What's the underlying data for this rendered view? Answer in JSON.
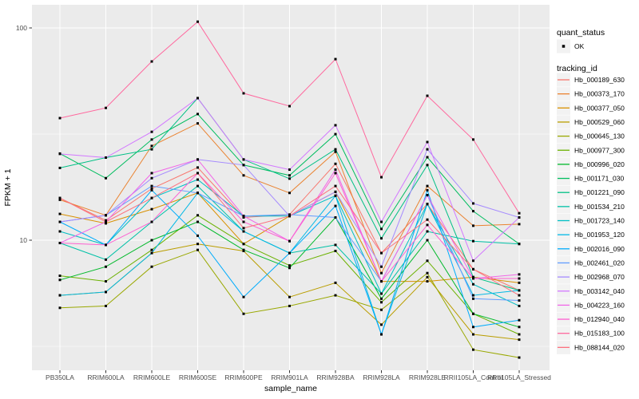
{
  "figure": {
    "panel_bg": "#EBEBEB",
    "grid_color": "#FFFFFF",
    "tick_color": "#333333",
    "tick_label_color": "#4D4D4D",
    "axis_title_color": "#000000",
    "point_color": "#000000",
    "legend_key_bg": "#F2F2F2"
  },
  "chart_data": {
    "type": "line",
    "title": "",
    "xlabel": "sample_name",
    "ylabel": "FPKM + 1",
    "y_scale": "log10",
    "ylim": [
      2.44,
      128
    ],
    "y_major_ticks": [
      100,
      10
    ],
    "y_major_tick_labels": [
      "100",
      "10"
    ],
    "y_minor_ticks": [
      31.62,
      3.162
    ],
    "grid": true,
    "legend_position": "right",
    "marker": "small-black-square",
    "categories": [
      "PB350LA",
      "RRIM600LA",
      "RRIM600LE",
      "RRIM600SE",
      "RRIM600PE",
      "RRIM901LA",
      "RRIM928BA",
      "RRIM928LA",
      "RRIM928LE",
      "RRII105LA_Control",
      "RRII105LA_Stressed"
    ],
    "series": [
      {
        "name": "Hb_000189_630",
        "color": "#F8766D",
        "values": [
          15.8,
          12.4,
          17.5,
          22.0,
          12.8,
          13.2,
          22.9,
          8.7,
          14.8,
          7.3,
          5.8
        ]
      },
      {
        "name": "Hb_000373_170",
        "color": "#EA8331",
        "values": [
          15.5,
          13.1,
          27.8,
          35.5,
          20.2,
          16.7,
          26.1,
          7.0,
          18.0,
          11.7,
          11.9
        ]
      },
      {
        "name": "Hb_000377_050",
        "color": "#D89000",
        "values": [
          13.3,
          12.0,
          14.0,
          16.7,
          9.6,
          13.0,
          16.9,
          6.4,
          6.4,
          6.7,
          6.3
        ]
      },
      {
        "name": "Hb_000529_060",
        "color": "#BA9E00",
        "values": [
          5.5,
          5.7,
          8.7,
          9.6,
          8.9,
          5.4,
          6.3,
          4.0,
          6.7,
          3.6,
          3.4
        ]
      },
      {
        "name": "Hb_000645_130",
        "color": "#99A800",
        "values": [
          4.8,
          4.9,
          7.5,
          9.0,
          4.5,
          4.9,
          5.5,
          4.7,
          7.0,
          3.05,
          2.8
        ]
      },
      {
        "name": "Hb_000977_300",
        "color": "#6BB100",
        "values": [
          6.8,
          6.4,
          9.0,
          13.1,
          9.6,
          7.6,
          8.9,
          5.1,
          8.0,
          4.5,
          3.6
        ]
      },
      {
        "name": "Hb_000996_020",
        "color": "#00B92A",
        "values": [
          6.5,
          7.5,
          10.0,
          12.2,
          9.0,
          7.4,
          12.8,
          5.3,
          10.0,
          4.5,
          3.9
        ]
      },
      {
        "name": "Hb_001171_030",
        "color": "#00BD5F",
        "values": [
          25.6,
          19.6,
          29.8,
          39.3,
          22.6,
          20.2,
          31.6,
          11.3,
          24.6,
          13.7,
          9.6
        ]
      },
      {
        "name": "Hb_001221_090",
        "color": "#00C085",
        "values": [
          21.9,
          24.5,
          26.8,
          46.7,
          24.0,
          19.5,
          26.8,
          10.2,
          22.6,
          6.7,
          5.8
        ]
      },
      {
        "name": "Hb_001534_210",
        "color": "#00C1A7",
        "values": [
          9.7,
          8.1,
          12.2,
          18.0,
          11.0,
          8.7,
          9.5,
          5.6,
          11.0,
          9.9,
          9.6
        ]
      },
      {
        "name": "Hb_001723_140",
        "color": "#00BFC4",
        "values": [
          11.0,
          9.5,
          15.8,
          19.3,
          13.0,
          13.0,
          16.2,
          5.6,
          14.8,
          6.2,
          4.9
        ]
      },
      {
        "name": "Hb_001953_120",
        "color": "#00B8E5",
        "values": [
          5.5,
          5.7,
          8.7,
          16.7,
          11.0,
          8.7,
          16.2,
          3.6,
          14.8,
          5.5,
          5.8
        ]
      },
      {
        "name": "Hb_002016_090",
        "color": "#00ACFC",
        "values": [
          12.2,
          9.5,
          17.2,
          10.5,
          5.4,
          8.7,
          14.5,
          3.6,
          17.2,
          3.9,
          4.2
        ]
      },
      {
        "name": "Hb_002461_020",
        "color": "#619CFF",
        "values": [
          12.2,
          13.1,
          18.0,
          16.7,
          13.0,
          13.2,
          12.8,
          6.4,
          16.3,
          5.3,
          5.2
        ]
      },
      {
        "name": "Hb_002968_070",
        "color": "#A58AFF",
        "values": [
          12.2,
          13.1,
          19.6,
          24.0,
          22.6,
          13.0,
          16.9,
          7.5,
          26.8,
          14.9,
          12.8
        ]
      },
      {
        "name": "Hb_003142_040",
        "color": "#D277FF",
        "values": [
          25.5,
          24.5,
          32.4,
          46.7,
          24.0,
          21.5,
          34.8,
          12.2,
          29.0,
          8.0,
          12.8
        ]
      },
      {
        "name": "Hb_004223_160",
        "color": "#F166E8",
        "values": [
          9.7,
          12.2,
          20.7,
          24.0,
          13.0,
          9.9,
          21.5,
          6.4,
          16.3,
          6.6,
          6.9
        ]
      },
      {
        "name": "Hb_012940_040",
        "color": "#FD61D1",
        "values": [
          9.7,
          9.5,
          12.2,
          20.7,
          12.2,
          9.9,
          20.7,
          6.4,
          11.8,
          6.6,
          6.6
        ]
      },
      {
        "name": "Hb_015183_100",
        "color": "#FF689E",
        "values": [
          37.6,
          42.0,
          69.5,
          107.0,
          49.2,
          42.8,
          71.3,
          19.8,
          47.9,
          29.8,
          13.4
        ]
      },
      {
        "name": "Hb_088144_020",
        "color": "#FC717F",
        "values": [
          15.8,
          12.2,
          15.8,
          20.7,
          11.4,
          13.0,
          18.0,
          8.7,
          12.5,
          7.3,
          5.5
        ]
      }
    ],
    "legend": {
      "quant_status_title": "quant_status",
      "quant_status_items": [
        {
          "label": "OK",
          "marker": "point"
        }
      ],
      "tracking_title": "tracking_id"
    }
  }
}
